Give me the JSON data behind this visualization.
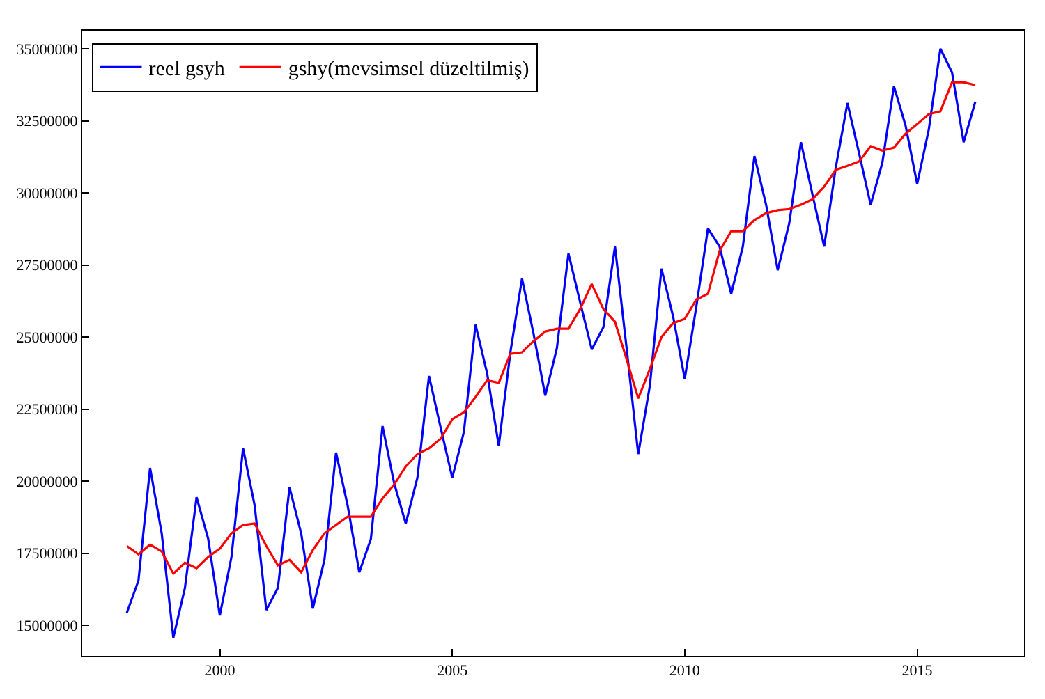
{
  "chart_data": {
    "type": "line",
    "x": [
      1998.0,
      1998.25,
      1998.5,
      1998.75,
      1999.0,
      1999.25,
      1999.5,
      1999.75,
      2000.0,
      2000.25,
      2000.5,
      2000.75,
      2001.0,
      2001.25,
      2001.5,
      2001.75,
      2002.0,
      2002.25,
      2002.5,
      2002.75,
      2003.0,
      2003.25,
      2003.5,
      2003.75,
      2004.0,
      2004.25,
      2004.5,
      2004.75,
      2005.0,
      2005.25,
      2005.5,
      2005.75,
      2006.0,
      2006.25,
      2006.5,
      2006.75,
      2007.0,
      2007.25,
      2007.5,
      2007.75,
      2008.0,
      2008.25,
      2008.5,
      2008.75,
      2009.0,
      2009.25,
      2009.5,
      2009.75,
      2010.0,
      2010.25,
      2010.5,
      2010.75,
      2011.0,
      2011.25,
      2011.5,
      2011.75,
      2012.0,
      2012.25,
      2012.5,
      2012.75,
      2013.0,
      2013.25,
      2013.5,
      2013.75,
      2014.0,
      2014.25,
      2014.5,
      2014.75,
      2015.0,
      2015.25,
      2015.5,
      2015.75,
      2016.0,
      2016.25
    ],
    "series": [
      {
        "name": "reel gsyh",
        "color": "#0000ff",
        "values": [
          15430000,
          16550000,
          20460000,
          18190000,
          14570000,
          16300000,
          19440000,
          18000000,
          15340000,
          17370000,
          21140000,
          19150000,
          15530000,
          16300000,
          19780000,
          18190000,
          15580000,
          17270000,
          20990000,
          19150000,
          16840000,
          18000000,
          21910000,
          19930000,
          18530000,
          20120000,
          23650000,
          21860000,
          20120000,
          21710000,
          25430000,
          23740000,
          21230000,
          24470000,
          27030000,
          25100000,
          22970000,
          24610000,
          27900000,
          26210000,
          24570000,
          25340000,
          28140000,
          24610000,
          20940000,
          23310000,
          27370000,
          25720000,
          23550000,
          26060000,
          28770000,
          28140000,
          26500000,
          28140000,
          31280000,
          29590000,
          27320000,
          28960000,
          31760000,
          29930000,
          28140000,
          30890000,
          33120000,
          31380000,
          29590000,
          31040000,
          33700000,
          32340000,
          30310000,
          32200000,
          35000000,
          34180000,
          31760000,
          33160000
        ]
      },
      {
        "name": "gshy(mevsimsel düzeltilmiş)",
        "color": "#ff0000",
        "values": [
          17750000,
          17460000,
          17800000,
          17560000,
          16790000,
          17170000,
          16980000,
          17370000,
          17660000,
          18190000,
          18480000,
          18530000,
          17750000,
          17080000,
          17270000,
          16840000,
          17610000,
          18190000,
          18480000,
          18770000,
          18770000,
          18770000,
          19400000,
          19880000,
          20510000,
          20940000,
          21140000,
          21470000,
          22150000,
          22390000,
          22920000,
          23500000,
          23410000,
          24420000,
          24470000,
          24860000,
          25190000,
          25290000,
          25290000,
          25970000,
          26840000,
          25970000,
          25530000,
          24230000,
          22870000,
          23890000,
          25000000,
          25480000,
          25630000,
          26300000,
          26500000,
          27990000,
          28670000,
          28670000,
          29060000,
          29300000,
          29400000,
          29440000,
          29590000,
          29780000,
          30220000,
          30800000,
          30940000,
          31090000,
          31620000,
          31470000,
          31570000,
          32050000,
          32390000,
          32730000,
          32830000,
          33840000,
          33840000,
          33740000
        ]
      }
    ],
    "xlim": [
      1997.04,
      2017.3
    ],
    "xticks": [
      2000,
      2005,
      2010,
      2015
    ],
    "ylim": [
      13940000,
      35630000
    ],
    "yticks": [
      15000000,
      17500000,
      20000000,
      22500000,
      25000000,
      27500000,
      30000000,
      32500000,
      35000000
    ],
    "grid": false,
    "legend": "top left",
    "marker": "none",
    "line_style": "solid"
  }
}
